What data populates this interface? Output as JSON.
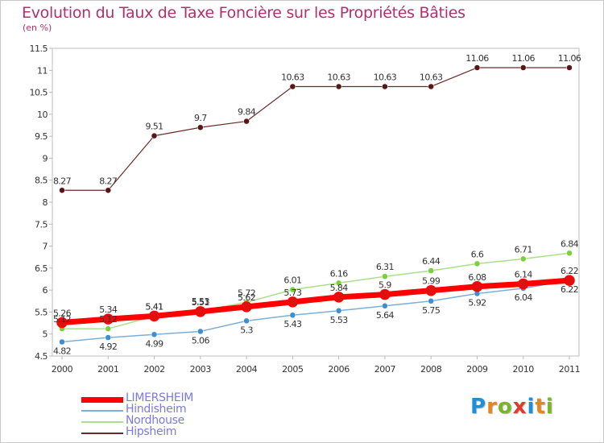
{
  "title": "Evolution du Taux de Taxe Foncière sur les Propriétés Bâties",
  "unit_label": "(en %)",
  "logo": {
    "letters": [
      "P",
      "r",
      "o",
      "x",
      "i",
      "t",
      "i"
    ],
    "colors": [
      "#1e8fd8",
      "#e8841c",
      "#79b626",
      "#e03a2a",
      "#1e8fd8",
      "#e8841c",
      "#79b626"
    ]
  },
  "chart_data": {
    "type": "line",
    "title": "Evolution du Taux de Taxe Foncière sur les Propriétés Bâties",
    "ylabel": "(en %)",
    "xlabel": "",
    "categories": [
      "2000",
      "2001",
      "2002",
      "2003",
      "2004",
      "2005",
      "2006",
      "2007",
      "2008",
      "2009",
      "2010",
      "2011"
    ],
    "ylim": [
      4.5,
      11.5
    ],
    "yticks": [
      "4.5",
      "5",
      "5.5",
      "6",
      "6.5",
      "7",
      "7.5",
      "8",
      "8.5",
      "9",
      "9.5",
      "10",
      "10.5",
      "11",
      "11.5"
    ],
    "legend_position": "bottom-left",
    "series": [
      {
        "name": "Hipsheim",
        "color": "#6b2a2a",
        "point_color": "#5a1616",
        "width": 1.2,
        "radius": 3.5,
        "label_above": true,
        "values": [
          8.27,
          8.27,
          9.51,
          9.7,
          9.84,
          10.63,
          10.63,
          10.63,
          10.63,
          11.06,
          11.06,
          11.06
        ],
        "labels": [
          "8.27",
          "8.27",
          "9.51",
          "9.7",
          "9.84",
          "10.63",
          "10.63",
          "10.63",
          "10.63",
          "11.06",
          "11.06",
          "11.06"
        ]
      },
      {
        "name": "Nordhouse",
        "color": "#a8e08c",
        "point_color": "#7ccf3a",
        "width": 1.5,
        "radius": 3.5,
        "label_above": true,
        "values": [
          5.12,
          5.12,
          5.41,
          5.53,
          5.72,
          6.01,
          6.16,
          6.31,
          6.44,
          6.6,
          6.71,
          6.84
        ],
        "labels": [
          "5.12",
          "5.12",
          "5.41",
          "5.53",
          "5.72",
          "6.01",
          "6.16",
          "6.31",
          "6.44",
          "6.6",
          "6.71",
          "6.84"
        ]
      },
      {
        "name": "Hindisheim",
        "color": "#7ab0d8",
        "point_color": "#3e8fd0",
        "width": 1.5,
        "radius": 3.5,
        "label_above": false,
        "values": [
          4.82,
          4.92,
          4.99,
          5.06,
          5.3,
          5.43,
          5.53,
          5.64,
          5.75,
          5.92,
          6.04,
          6.22
        ],
        "labels": [
          "4.82",
          "4.92",
          "4.99",
          "5.06",
          "5.3",
          "5.43",
          "5.53",
          "5.64",
          "5.75",
          "5.92",
          "6.04",
          "6.22"
        ]
      },
      {
        "name": "LIMERSHEIM",
        "color": "#ff0000",
        "point_color": "#e01010",
        "width": 7,
        "radius": 6,
        "label_above": true,
        "values": [
          5.26,
          5.34,
          5.41,
          5.51,
          5.62,
          5.73,
          5.84,
          5.9,
          5.99,
          6.08,
          6.14,
          6.22
        ],
        "labels": [
          "5.26",
          "5.34",
          "5.41",
          "5.51",
          "5.62",
          "5.73",
          "5.84",
          "5.9",
          "5.99",
          "6.08",
          "6.14",
          "6.22"
        ]
      }
    ],
    "legend": [
      {
        "name": "LIMERSHEIM",
        "color": "#ff0000",
        "thickness": 7
      },
      {
        "name": "Hindisheim",
        "color": "#7ab0d8",
        "thickness": 1.5
      },
      {
        "name": "Nordhouse",
        "color": "#a8e08c",
        "thickness": 1.5
      },
      {
        "name": "Hipsheim",
        "color": "#6b2a2a",
        "thickness": 1.5
      }
    ]
  }
}
